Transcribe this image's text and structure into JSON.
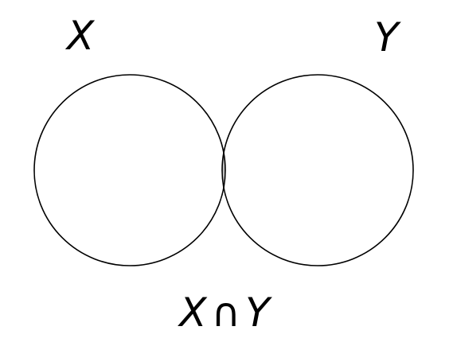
{
  "diagram": {
    "type": "venn",
    "sets": [
      {
        "label": "X"
      },
      {
        "label": "Y"
      }
    ],
    "intersection": {
      "left_symbol": "X",
      "operator": "∩",
      "right_symbol": "Y"
    },
    "colors": {
      "outline": "#000000",
      "intersection_fill": "#c0c0c0",
      "background": "#ffffff"
    }
  }
}
